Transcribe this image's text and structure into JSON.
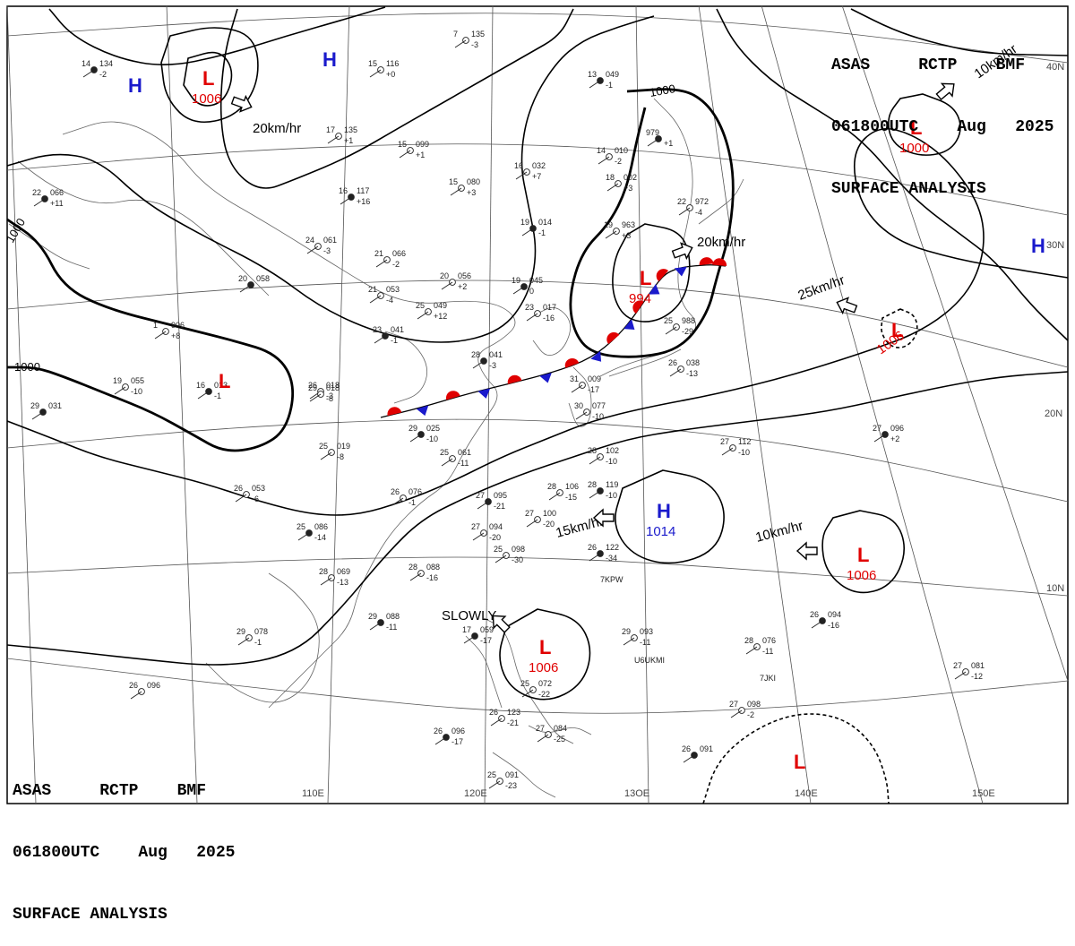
{
  "header": {
    "line1": "ASAS     RCTP    BMF",
    "line2": "061800UTC    Aug   2025",
    "line3": "SURFACE ANALYSIS"
  },
  "grid": {
    "lon_labels": [
      "110E",
      "120E",
      "13OE",
      "140E",
      "150E"
    ],
    "lat_labels": [
      "40N",
      "30N",
      "20N",
      "10N"
    ]
  },
  "isobar_labels": [
    "1000",
    "1000",
    "1000"
  ],
  "systems": [
    {
      "type": "L",
      "pressure": "1006"
    },
    {
      "type": "H",
      "pressure": ""
    },
    {
      "type": "H",
      "pressure": ""
    },
    {
      "type": "L",
      "pressure": "1000"
    },
    {
      "type": "H",
      "pressure": ""
    },
    {
      "type": "L",
      "pressure": "994"
    },
    {
      "type": "L",
      "pressure": "1006"
    },
    {
      "type": "L",
      "pressure": ""
    },
    {
      "type": "H",
      "pressure": "1014"
    },
    {
      "type": "L",
      "pressure": "1006"
    },
    {
      "type": "L",
      "pressure": "1006"
    },
    {
      "type": "L",
      "pressure": ""
    }
  ],
  "motions": [
    "20km/hr",
    "10km/hr",
    "20km/hr",
    "25km/hr",
    "15km/hr",
    "10km/hr",
    "SLOWLY"
  ],
  "stations": [
    {
      "t": "14",
      "p": "134",
      "d": "-2"
    },
    {
      "t": "7",
      "p": "135",
      "d": "-3"
    },
    {
      "t": "15",
      "p": "116",
      "d": "+0"
    },
    {
      "t": "13",
      "p": "049",
      "d": "-1"
    },
    {
      "t": "17",
      "p": "135",
      "d": "+1"
    },
    {
      "t": "15",
      "p": "099",
      "d": "+1"
    },
    {
      "t": "979",
      "p": "",
      "d": "+1"
    },
    {
      "t": "16",
      "p": "032",
      "d": "+7"
    },
    {
      "t": "15",
      "p": "080",
      "d": "+3"
    },
    {
      "t": "16",
      "p": "117",
      "d": "+16"
    },
    {
      "t": "14",
      "p": "010",
      "d": "-2"
    },
    {
      "t": "18",
      "p": "002",
      "d": "+3"
    },
    {
      "t": "22",
      "p": "066",
      "d": "+11"
    },
    {
      "t": "24",
      "p": "061",
      "d": "-3"
    },
    {
      "t": "21",
      "p": "066",
      "d": "-2"
    },
    {
      "t": "19",
      "p": "014",
      "d": "-1"
    },
    {
      "t": "19",
      "p": "963",
      "d": "+3"
    },
    {
      "t": "22",
      "p": "972",
      "d": "-4"
    },
    {
      "t": "20",
      "p": "058",
      "d": ""
    },
    {
      "t": "21",
      "p": "053",
      "d": "-4"
    },
    {
      "t": "20",
      "p": "056",
      "d": "+2"
    },
    {
      "t": "19",
      "p": "045",
      "d": "0"
    },
    {
      "t": "25",
      "p": "049",
      "d": "+12"
    },
    {
      "t": "1",
      "p": "906",
      "d": "+8"
    },
    {
      "t": "23",
      "p": "041",
      "d": "-1"
    },
    {
      "t": "23",
      "p": "017",
      "d": "-16"
    },
    {
      "t": "26",
      "p": "018",
      "d": "-3"
    },
    {
      "t": "28",
      "p": "041",
      "d": "-3"
    },
    {
      "t": "25",
      "p": "988",
      "d": "-29"
    },
    {
      "t": "19",
      "p": "055",
      "d": "-10"
    },
    {
      "t": "16",
      "p": "013",
      "d": "-1"
    },
    {
      "t": "29",
      "p": "018",
      "d": "-8"
    },
    {
      "t": "26",
      "p": "038",
      "d": "-13"
    },
    {
      "t": "29",
      "p": "031",
      "d": ""
    },
    {
      "t": "31",
      "p": "009",
      "d": "-17"
    },
    {
      "t": "30",
      "p": "077",
      "d": "-10"
    },
    {
      "t": "29",
      "p": "025",
      "d": "-10"
    },
    {
      "t": "25",
      "p": "019",
      "d": "-8"
    },
    {
      "t": "27",
      "p": "112",
      "d": "-10"
    },
    {
      "t": "27",
      "p": "096",
      "d": "+2"
    },
    {
      "t": "25",
      "p": "061",
      "d": "-11"
    },
    {
      "t": "28",
      "p": "102",
      "d": "-10"
    },
    {
      "t": "28",
      "p": "119",
      "d": "-10"
    },
    {
      "t": "26",
      "p": "053",
      "d": "-6"
    },
    {
      "t": "26",
      "p": "076",
      "d": "-1"
    },
    {
      "t": "27",
      "p": "095",
      "d": "-21"
    },
    {
      "t": "28",
      "p": "106",
      "d": "-15"
    },
    {
      "t": "27",
      "p": "100",
      "d": "-20"
    },
    {
      "t": "25",
      "p": "086",
      "d": "-14"
    },
    {
      "t": "27",
      "p": "094",
      "d": "-20"
    },
    {
      "t": "25",
      "p": "098",
      "d": "-30"
    },
    {
      "t": "26",
      "p": "122",
      "d": "-34"
    },
    {
      "t": "28",
      "p": "069",
      "d": "-13"
    },
    {
      "t": "28",
      "p": "088",
      "d": "-16"
    },
    {
      "t": "29",
      "p": "088",
      "d": "-11"
    },
    {
      "t": "29",
      "p": "078",
      "d": "-1"
    },
    {
      "t": "29",
      "p": "093",
      "d": "-11"
    },
    {
      "t": "26",
      "p": "094",
      "d": "-16"
    },
    {
      "t": "28",
      "p": "076",
      "d": "-11"
    },
    {
      "t": "27",
      "p": "081",
      "d": "-12"
    },
    {
      "t": "17",
      "p": "059",
      "d": "-17"
    },
    {
      "t": "26",
      "p": "096",
      "d": ""
    },
    {
      "t": "27",
      "p": "098",
      "d": "-2"
    },
    {
      "t": "26",
      "p": "096",
      "d": "-17"
    },
    {
      "t": "26",
      "p": "123",
      "d": "-21"
    },
    {
      "t": "27",
      "p": "084",
      "d": "-25"
    },
    {
      "t": "26",
      "p": "091",
      "d": ""
    },
    {
      "t": "25",
      "p": "091",
      "d": "-23"
    },
    {
      "t": "25",
      "p": "072",
      "d": "-22"
    }
  ],
  "station_ids": [
    "7KPW",
    "U6UKMI",
    "7JKI"
  ]
}
